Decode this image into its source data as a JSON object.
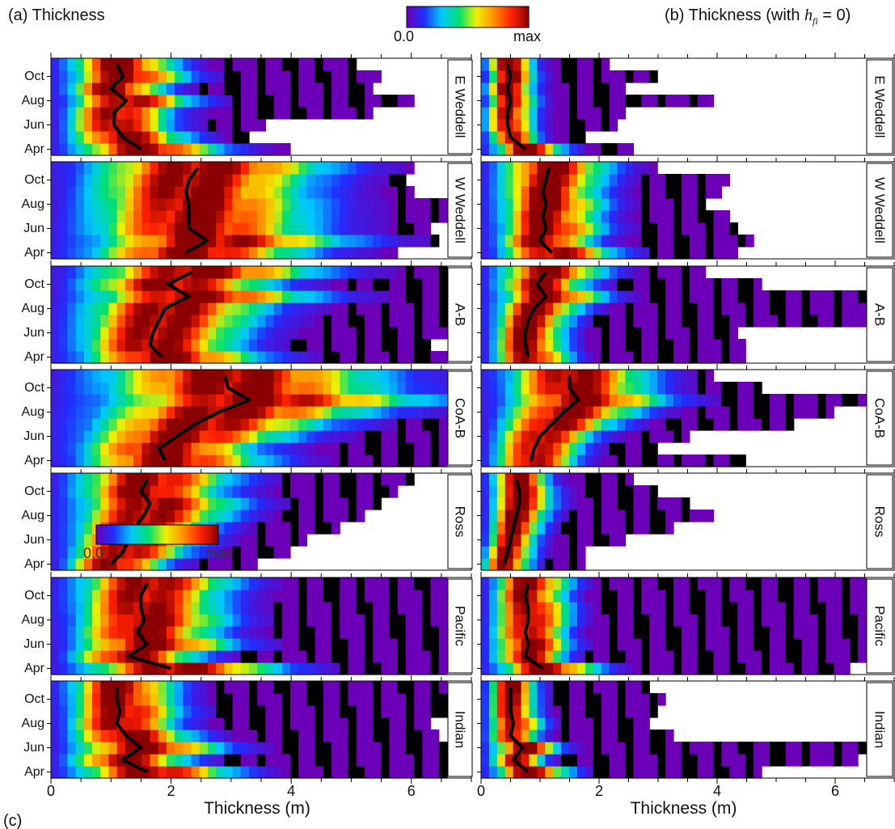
{
  "figure": {
    "panel_a_title": "(a) Thickness",
    "panel_b_title_prefix": "(b) Thickness (with ",
    "panel_b_symbol": "h",
    "panel_b_subscript": "fi",
    "panel_b_title_suffix": " = 0)",
    "panel_c_label": "(c)",
    "colorbar_min": "0.0",
    "colorbar_max": "max",
    "inset_colorbar_min": "0.0",
    "inset_colorbar_max": "max"
  },
  "chart_data": [
    {
      "type": "heatmap",
      "panel": "a",
      "title": "(a) Thickness",
      "xlabel": "Thickness (m)",
      "xlim": [
        0,
        7
      ],
      "xticks": [
        0,
        2,
        4,
        6
      ],
      "yticks": [
        "Oct",
        "Aug",
        "Jun",
        "Apr"
      ],
      "months": [
        "Apr",
        "May",
        "Jun",
        "Jul",
        "Aug",
        "Sep",
        "Oct",
        "Nov"
      ],
      "colorscale": {
        "min_label": "0.0",
        "max_label": "max",
        "colors": [
          "#6b00b8",
          "#1f2fff",
          "#00c8ff",
          "#00e070",
          "#f0f000",
          "#ff9000",
          "#ff2000",
          "#8a0000"
        ]
      },
      "regions": [
        {
          "name": "E Weddell",
          "median_thickness_m": [
            1.5,
            1.2,
            1.05,
            1.05,
            1.25,
            1.0,
            1.2,
            1.1
          ],
          "extent_m": [
            4.0,
            3.3,
            3.6,
            5.3,
            6.1,
            5.3,
            5.5,
            5.1
          ]
        },
        {
          "name": "W Weddell",
          "median_thickness_m": [
            2.25,
            2.6,
            2.3,
            2.3,
            2.3,
            2.25,
            2.3,
            2.45
          ],
          "extent_m": [
            5.8,
            6.5,
            6.3,
            6.7,
            6.6,
            6.1,
            5.9,
            6.0
          ]
        },
        {
          "name": "A-B",
          "median_thickness_m": [
            1.85,
            1.65,
            1.7,
            1.8,
            1.9,
            2.3,
            1.95,
            2.35
          ],
          "extent_m": [
            6.7,
            6.3,
            6.7,
            6.7,
            6.7,
            6.7,
            6.7,
            6.7
          ]
        },
        {
          "name": "CoA-B",
          "median_thickness_m": [
            1.9,
            1.8,
            2.1,
            2.4,
            2.8,
            3.3,
            2.95,
            2.9
          ],
          "extent_m": [
            6.7,
            6.7,
            6.7,
            6.7,
            6.7,
            6.7,
            6.7,
            6.7
          ]
        },
        {
          "name": "Ross",
          "median_thickness_m": [
            1.0,
            1.2,
            1.3,
            1.4,
            1.55,
            1.65,
            1.5,
            1.6
          ],
          "extent_m": [
            3.5,
            4.0,
            4.3,
            4.8,
            5.2,
            5.5,
            5.8,
            6.1
          ]
        },
        {
          "name": "Pacific",
          "median_thickness_m": [
            2.0,
            1.3,
            1.6,
            1.45,
            1.55,
            1.5,
            1.5,
            1.6
          ],
          "extent_m": [
            6.7,
            6.7,
            6.7,
            6.7,
            6.7,
            6.7,
            6.7,
            6.7
          ]
        },
        {
          "name": "Indian",
          "median_thickness_m": [
            1.6,
            1.2,
            1.5,
            1.25,
            1.1,
            1.15,
            1.1,
            1.1
          ],
          "extent_m": [
            6.7,
            6.7,
            6.7,
            6.5,
            6.3,
            6.6,
            6.7,
            6.7
          ]
        }
      ]
    },
    {
      "type": "heatmap",
      "panel": "b",
      "title": "(b) Thickness (with h_fi = 0)",
      "xlabel": "Thickness (m)",
      "xlim": [
        0,
        7
      ],
      "xticks": [
        0,
        2,
        4,
        6
      ],
      "yticks": [
        "Oct",
        "Aug",
        "Jun",
        "Apr"
      ],
      "months": [
        "Apr",
        "May",
        "Jun",
        "Jul",
        "Aug",
        "Sep",
        "Oct",
        "Nov"
      ],
      "colorscale": {
        "min_label": "0.0",
        "max_label": "max",
        "colors": [
          "#6b00b8",
          "#1f2fff",
          "#00c8ff",
          "#00e070",
          "#f0f000",
          "#ff9000",
          "#ff2000",
          "#8a0000"
        ]
      },
      "regions": [
        {
          "name": "E Weddell",
          "median_thickness_m": [
            0.75,
            0.5,
            0.45,
            0.45,
            0.5,
            0.45,
            0.5,
            0.45
          ],
          "extent_m": [
            2.6,
            1.8,
            2.3,
            2.4,
            4.0,
            2.5,
            3.0,
            2.2
          ]
        },
        {
          "name": "W Weddell",
          "median_thickness_m": [
            1.2,
            1.0,
            1.1,
            1.05,
            1.1,
            1.05,
            1.1,
            1.15
          ],
          "extent_m": [
            4.4,
            4.6,
            4.3,
            4.2,
            3.8,
            4.1,
            4.2,
            3.0
          ]
        },
        {
          "name": "A-B",
          "median_thickness_m": [
            0.8,
            0.75,
            0.75,
            0.8,
            0.9,
            1.1,
            0.95,
            1.1
          ],
          "extent_m": [
            4.5,
            4.5,
            4.3,
            6.7,
            6.7,
            6.7,
            4.8,
            3.8
          ]
        },
        {
          "name": "CoA-B",
          "median_thickness_m": [
            0.85,
            0.9,
            1.0,
            1.2,
            1.4,
            1.65,
            1.5,
            1.5
          ],
          "extent_m": [
            4.5,
            3.0,
            3.5,
            5.3,
            6.0,
            6.7,
            4.8,
            3.9
          ]
        },
        {
          "name": "Ross",
          "median_thickness_m": [
            0.4,
            0.45,
            0.5,
            0.55,
            0.6,
            0.65,
            0.65,
            0.6
          ],
          "extent_m": [
            1.7,
            1.7,
            2.4,
            3.2,
            4.0,
            3.5,
            3.0,
            2.6
          ]
        },
        {
          "name": "Pacific",
          "median_thickness_m": [
            1.05,
            0.75,
            0.8,
            0.75,
            0.8,
            0.8,
            0.75,
            0.8
          ],
          "extent_m": [
            6.3,
            6.7,
            6.7,
            6.7,
            6.7,
            6.7,
            6.7,
            6.7
          ]
        },
        {
          "name": "Indian",
          "median_thickness_m": [
            0.8,
            0.55,
            0.7,
            0.5,
            0.55,
            0.5,
            0.5,
            0.5
          ],
          "extent_m": [
            4.7,
            6.4,
            6.7,
            3.3,
            2.9,
            3.0,
            3.1,
            2.9
          ]
        }
      ]
    }
  ]
}
